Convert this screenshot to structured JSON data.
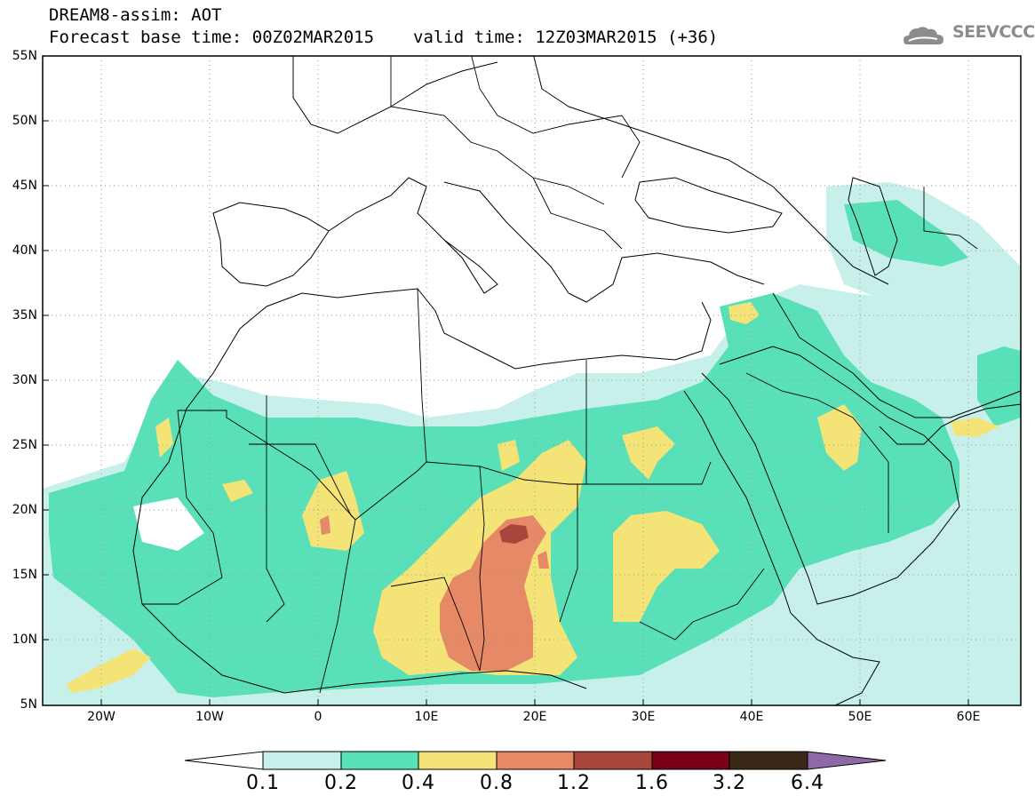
{
  "title": {
    "line1": "DREAM8-assim: AOT",
    "base_time": "Forecast base time: 00Z02MAR2015",
    "valid_time": "valid time: 12Z03MAR2015 (+36)"
  },
  "logo": {
    "text": "SEEVCCC"
  },
  "map": {
    "lat_labels": [
      "55N",
      "50N",
      "45N",
      "40N",
      "35N",
      "30N",
      "25N",
      "20N",
      "15N",
      "10N",
      "5N"
    ],
    "lon_labels": [
      "20W",
      "10W",
      "0",
      "10E",
      "20E",
      "30E",
      "40E",
      "50E",
      "60E"
    ],
    "extent": {
      "lon_min": -25,
      "lon_max": 65,
      "lat_min": 5,
      "lat_max": 55
    },
    "grid": "dotted",
    "field": "Aerosol Optical Thickness"
  },
  "colorbar": {
    "levels": [
      "0.1",
      "0.2",
      "0.4",
      "0.8",
      "1.2",
      "1.6",
      "3.2",
      "6.4"
    ],
    "colors": [
      "#ffffff",
      "#c6f0e9",
      "#5ae0b8",
      "#f4e478",
      "#e58966",
      "#a9463c",
      "#780019",
      "#3c2816",
      "#8e69a8"
    ]
  }
}
